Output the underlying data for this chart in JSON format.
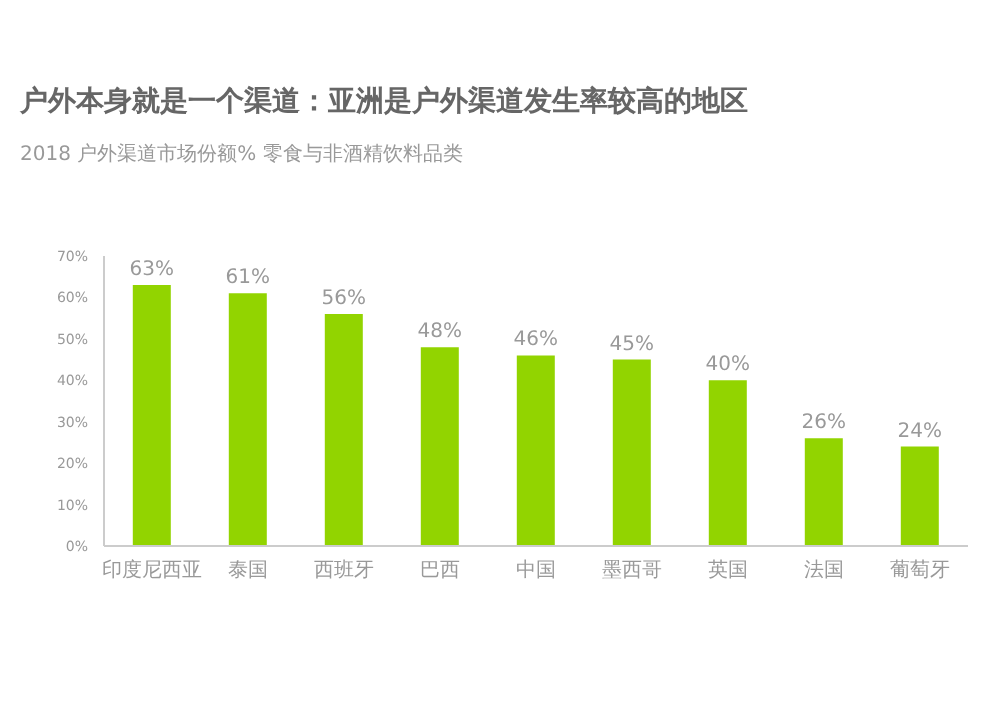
{
  "chart_data": {
    "type": "bar",
    "title": "户外本身就是一个渠道：亚洲是户外渠道发生率较高的地区",
    "subtitle": "2018 户外渠道市场份额% 零食与非酒精饮料品类",
    "categories": [
      "印度尼西亚",
      "泰国",
      "西班牙",
      "巴西",
      "中国",
      "墨西哥",
      "英国",
      "法国",
      "葡萄牙"
    ],
    "values": [
      63,
      61,
      56,
      48,
      46,
      45,
      40,
      26,
      24
    ],
    "value_labels": [
      "63%",
      "61%",
      "56%",
      "48%",
      "46%",
      "45%",
      "40%",
      "26%",
      "24%"
    ],
    "color": "#92d400",
    "ylim": [
      0,
      70
    ],
    "yticks": [
      {
        "value": 0,
        "label": "0%"
      },
      {
        "value": 10,
        "label": "10%"
      },
      {
        "value": 20,
        "label": "20%"
      },
      {
        "value": 30,
        "label": "30%"
      },
      {
        "value": 40,
        "label": "40%"
      },
      {
        "value": 50,
        "label": "50%"
      },
      {
        "value": 60,
        "label": "60%"
      },
      {
        "value": 70,
        "label": "70%"
      }
    ],
    "grid": false,
    "legend": false
  }
}
